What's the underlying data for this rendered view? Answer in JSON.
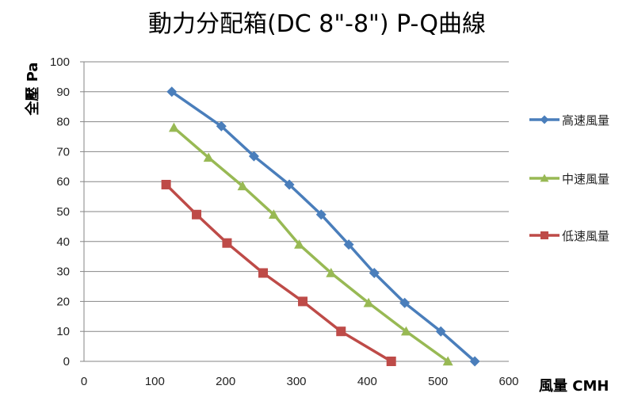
{
  "chart_data": {
    "type": "line",
    "title": "動力分配箱(DC 8\"-8\")  P-Q曲線",
    "xlabel": "風量 CMH",
    "ylabel": "全壓 Pa",
    "xlim": [
      0,
      600
    ],
    "ylim": [
      0,
      100
    ],
    "x_ticks": [
      "0",
      "100",
      "200",
      "300",
      "400",
      "500",
      "600"
    ],
    "y_ticks": [
      "0",
      "10",
      "20",
      "30",
      "40",
      "50",
      "60",
      "70",
      "80",
      "90",
      "100"
    ],
    "grid": "horizontal",
    "legend_position": "right",
    "series": [
      {
        "name": "高速風量",
        "color": "#4a7ebb",
        "marker": "diamond",
        "x": [
          124,
          194,
          240,
          290,
          335,
          374,
          410,
          453,
          504,
          552
        ],
        "y": [
          90,
          78.5,
          68.5,
          59,
          49,
          39,
          29.5,
          19.5,
          10,
          0
        ]
      },
      {
        "name": "中速風量",
        "color": "#98b954",
        "marker": "triangle",
        "x": [
          127,
          176,
          224,
          268,
          304,
          349,
          402,
          455,
          514
        ],
        "y": [
          78,
          68,
          58.5,
          49,
          39,
          29.5,
          19.5,
          10,
          0
        ]
      },
      {
        "name": "低速風量",
        "color": "#be4b48",
        "marker": "square",
        "x": [
          116,
          159,
          202,
          253,
          309,
          363,
          434
        ],
        "y": [
          59,
          49,
          39.5,
          29.5,
          20,
          10,
          0
        ]
      }
    ]
  }
}
